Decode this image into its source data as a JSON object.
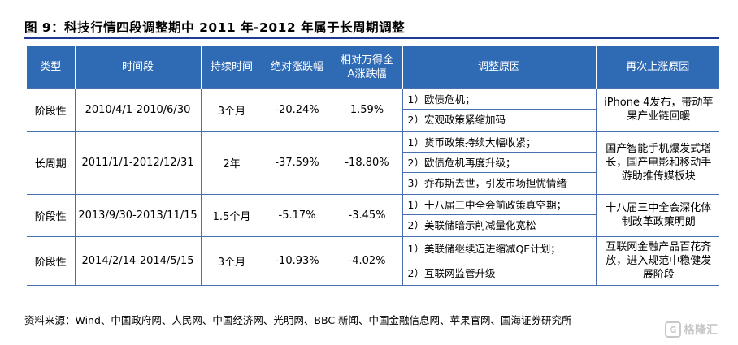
{
  "title": "图 9：科技行情四段调整期中 2011 年-2012 年属于长周期调整",
  "headers": [
    "类型",
    "时间段",
    "持续时间",
    "绝对涨跌幅",
    "相对万得全\nA涨跌幅",
    "调整原因",
    "再次上涨原因"
  ],
  "rows": [
    {
      "type": "阶段性",
      "period": "2010/4/1-2010/6/30",
      "duration": "3个月",
      "abs_change": "-20.24%",
      "rel_change": "1.59%",
      "reasons": [
        "1）欧债危机；",
        "2）宏观政策紧缩加码"
      ],
      "rebound": "iPhone 4发布，带动苹果产业链回暖"
    },
    {
      "type": "长周期",
      "period": "2011/1/1-2012/12/31",
      "duration": "2年",
      "abs_change": "-37.59%",
      "rel_change": "-18.80%",
      "reasons": [
        "1）货币政策持续大幅收紧；",
        "2）欧债危机再度升级；",
        "3）乔布斯去世，引发市场担忧情绪"
      ],
      "rebound": "国产智能手机爆发式增长，国产电影和移动手游助推传媒板块"
    },
    {
      "type": "阶段性",
      "period": "2013/9/30-2013/11/15",
      "duration": "1.5个月",
      "abs_change": "-5.17%",
      "rel_change": "-3.45%",
      "reasons": [
        "1）十八届三中全会前政策真空期；",
        "2）美联储暗示削减量化宽松"
      ],
      "rebound": "十八届三中全会深化体制改革政策明朗"
    },
    {
      "type": "阶段性",
      "period": "2014/2/14-2014/5/15",
      "duration": "3个月",
      "abs_change": "-10.93%",
      "rel_change": "-4.02%",
      "reasons": [
        "1）美联储继续迈进缩减QE计划；",
        "2）互联网监管升级"
      ],
      "rebound": "互联网金融产品百花齐放，进入规范中稳健发展阶段"
    }
  ],
  "source": "资料来源：Wind、中国政府网、人民网、中国经济网、光明网、BBC 新闻、中国金融信息网、苹果官网、国海证券研究所",
  "watermark": "格隆汇",
  "colors": {
    "header_bg": "#2f6ab5",
    "rule": "#1f3a93",
    "border": "#4a6fb0"
  }
}
